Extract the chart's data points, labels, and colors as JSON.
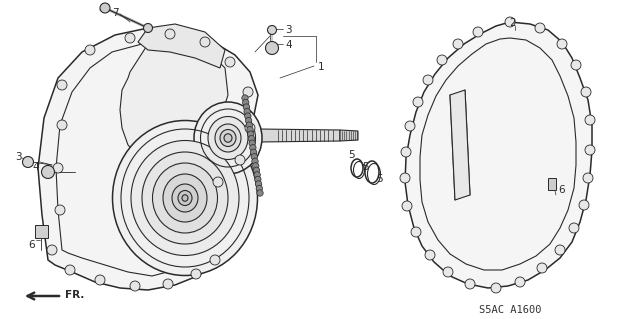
{
  "bg_color": "#ffffff",
  "lc": "#2a2a2a",
  "fig_width": 6.4,
  "fig_height": 3.19,
  "dpi": 100,
  "code_text": "S5AC A1600",
  "xlim": [
    0,
    640
  ],
  "ylim": [
    0,
    319
  ]
}
